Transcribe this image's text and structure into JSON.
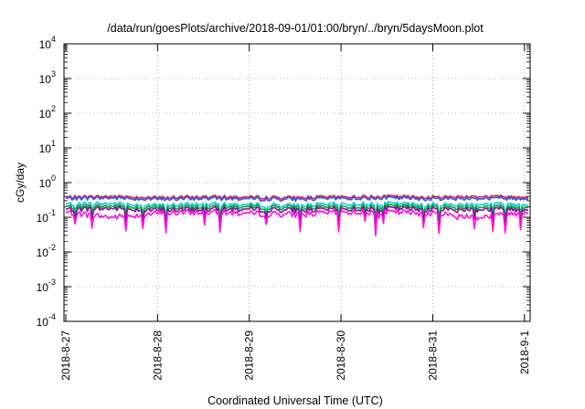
{
  "chart_data": {
    "type": "line",
    "title": "/data/run/goesPlots/archive/2018-09-01/01:00/bryn/../bryn/5daysMoon.plot",
    "xlabel": "Coordinated Universal Time (UTC)",
    "ylabel": "cGy/day",
    "yscale": "log",
    "ylim": [
      0.0001,
      10000
    ],
    "xlim": [
      "2018-08-27",
      "2018-09-01 01:00"
    ],
    "grid": true,
    "legend": "none",
    "x_ticks": [
      "2018-8-27",
      "2018-8-28",
      "2018-8-29",
      "2018-8-30",
      "2018-8-31",
      "2018-9-1"
    ],
    "y_ticks": [
      {
        "base": "10",
        "exp": "-4"
      },
      {
        "base": "10",
        "exp": "-3"
      },
      {
        "base": "10",
        "exp": "-2"
      },
      {
        "base": "10",
        "exp": "-1"
      },
      {
        "base": "10",
        "exp": "0"
      },
      {
        "base": "10",
        "exp": "1"
      },
      {
        "base": "10",
        "exp": "2"
      },
      {
        "base": "10",
        "exp": "3"
      },
      {
        "base": "10",
        "exp": "4"
      }
    ],
    "x": [
      "2018-08-27 00:00",
      "2018-08-27 12:00",
      "2018-08-28 00:00",
      "2018-08-28 12:00",
      "2018-08-29 00:00",
      "2018-08-29 12:00",
      "2018-08-30 00:00",
      "2018-08-30 12:00",
      "2018-08-31 00:00",
      "2018-08-31 12:00",
      "2018-09-01 00:00",
      "2018-09-01 01:00"
    ],
    "series": [
      {
        "color": "#e0204d",
        "values": [
          0.38,
          0.4,
          0.37,
          0.39,
          0.38,
          0.37,
          0.39,
          0.4,
          0.38,
          0.4,
          0.39,
          0.38
        ]
      },
      {
        "color": "#2a5ef0",
        "values": [
          0.35,
          0.36,
          0.33,
          0.35,
          0.34,
          0.33,
          0.35,
          0.36,
          0.34,
          0.35,
          0.35,
          0.34
        ]
      },
      {
        "color": "#15d0c8",
        "values": [
          0.24,
          0.25,
          0.22,
          0.24,
          0.23,
          0.22,
          0.24,
          0.25,
          0.23,
          0.24,
          0.24,
          0.23
        ]
      },
      {
        "color": "#0aa040",
        "values": [
          0.2,
          0.21,
          0.19,
          0.2,
          0.2,
          0.19,
          0.2,
          0.21,
          0.2,
          0.2,
          0.2,
          0.2
        ]
      },
      {
        "color": "#8a1090",
        "values": [
          0.17,
          0.18,
          0.16,
          0.17,
          0.17,
          0.16,
          0.17,
          0.18,
          0.17,
          0.17,
          0.17,
          0.17
        ]
      },
      {
        "color": "#ff10e0",
        "values": [
          0.14,
          0.1,
          0.13,
          0.14,
          0.13,
          0.12,
          0.14,
          0.14,
          0.13,
          0.1,
          0.14,
          0.14
        ]
      }
    ]
  }
}
